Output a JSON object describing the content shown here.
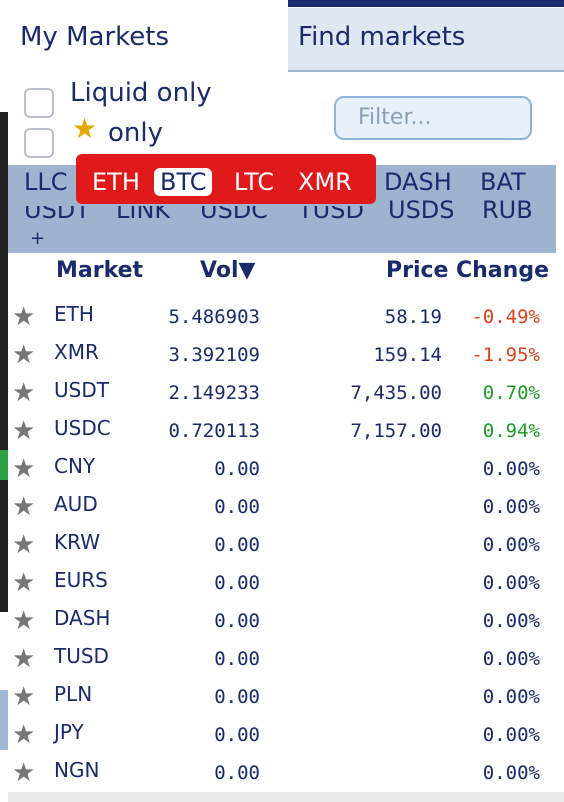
{
  "tabs": {
    "my_markets": "My Markets",
    "find_markets": "Find markets"
  },
  "options": {
    "liquid_only": "Liquid only",
    "star_only": "only"
  },
  "filter": {
    "placeholder": "Filter..."
  },
  "currencies": {
    "row1": [
      "LLC",
      "ETH",
      "BTC",
      "LTC",
      "XMR",
      "DASH",
      "BAT"
    ],
    "row2": [
      "USDT",
      "LINK",
      "USDC",
      "TUSD",
      "USDS",
      "RUB"
    ],
    "selected": "BTC",
    "more": "+"
  },
  "table": {
    "headers": {
      "market": "Market",
      "vol": "Vol▼",
      "price": "Price",
      "change": "Change"
    },
    "rows": [
      {
        "market": "ETH",
        "vol": "5.486903",
        "price": "58.19",
        "change": "-0.49%",
        "dir": "neg"
      },
      {
        "market": "XMR",
        "vol": "3.392109",
        "price": "159.14",
        "change": "-1.95%",
        "dir": "neg"
      },
      {
        "market": "USDT",
        "vol": "2.149233",
        "price": "7,435.00",
        "change": "0.70%",
        "dir": "pos"
      },
      {
        "market": "USDC",
        "vol": "0.720113",
        "price": "7,157.00",
        "change": "0.94%",
        "dir": "pos"
      },
      {
        "market": "CNY",
        "vol": "0.00",
        "price": "",
        "change": "0.00%",
        "dir": "zero"
      },
      {
        "market": "AUD",
        "vol": "0.00",
        "price": "",
        "change": "0.00%",
        "dir": "zero"
      },
      {
        "market": "KRW",
        "vol": "0.00",
        "price": "",
        "change": "0.00%",
        "dir": "zero"
      },
      {
        "market": "EURS",
        "vol": "0.00",
        "price": "",
        "change": "0.00%",
        "dir": "zero"
      },
      {
        "market": "DASH",
        "vol": "0.00",
        "price": "",
        "change": "0.00%",
        "dir": "zero"
      },
      {
        "market": "TUSD",
        "vol": "0.00",
        "price": "",
        "change": "0.00%",
        "dir": "zero"
      },
      {
        "market": "PLN",
        "vol": "0.00",
        "price": "",
        "change": "0.00%",
        "dir": "zero"
      },
      {
        "market": "JPY",
        "vol": "0.00",
        "price": "",
        "change": "0.00%",
        "dir": "zero"
      },
      {
        "market": "NGN",
        "vol": "0.00",
        "price": "",
        "change": "0.00%",
        "dir": "zero"
      }
    ]
  },
  "colors": {
    "accent": "#1a2a6c",
    "band": "#9eb3cf",
    "highlight": "#e01a1a",
    "negative": "#e0401a",
    "positive": "#1f9d2a"
  }
}
